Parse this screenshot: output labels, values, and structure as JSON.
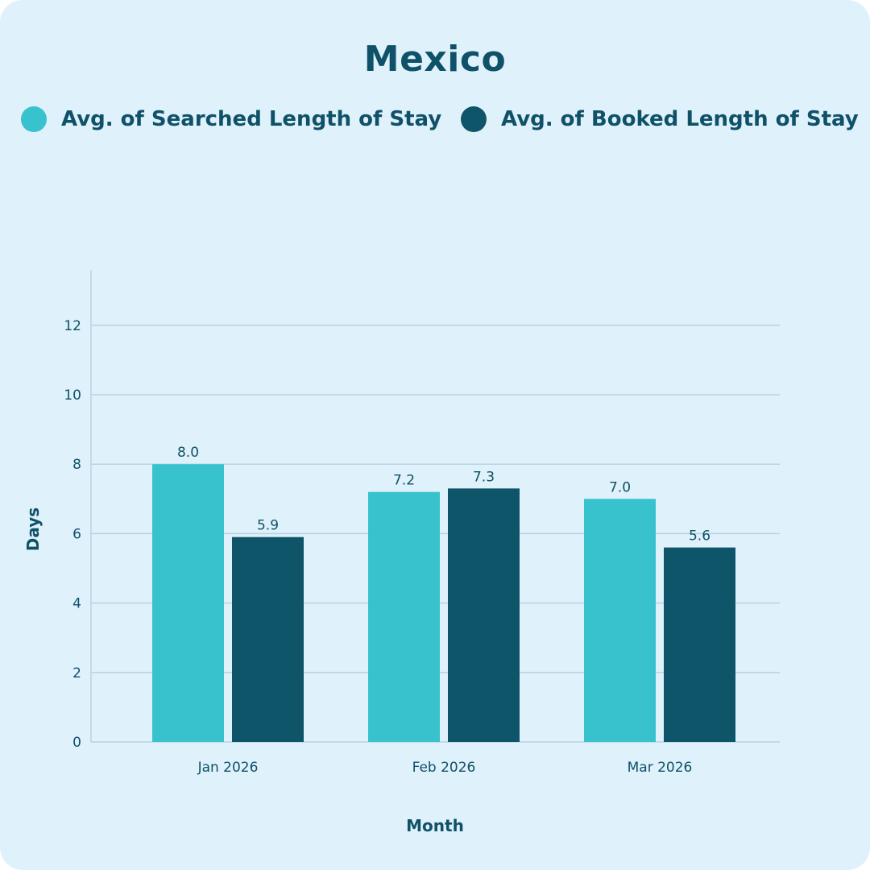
{
  "chart_data": {
    "type": "bar",
    "title": "Mexico",
    "xlabel": "Month",
    "ylabel": "Days",
    "categories": [
      "Jan 2026",
      "Feb 2026",
      "Mar 2026"
    ],
    "series": [
      {
        "name": "Avg. of Searched Length of Stay",
        "values": [
          8.0,
          7.2,
          7.0
        ],
        "labels": [
          "8.0",
          "7.2",
          "7.0"
        ],
        "color": "#38c2cd"
      },
      {
        "name": "Avg. of Booked Length of Stay",
        "values": [
          5.9,
          7.3,
          5.6
        ],
        "labels": [
          "5.9",
          "7.3",
          "5.6"
        ],
        "color": "#0f5569"
      }
    ],
    "ylim": [
      0,
      13.5
    ],
    "yticks": [
      0,
      2,
      4,
      6,
      8,
      10,
      12
    ],
    "grid": true,
    "legend": "top"
  },
  "colors": {
    "background": "#dff1fa",
    "text": "#0f5168",
    "grid": "#b9d3e2"
  }
}
